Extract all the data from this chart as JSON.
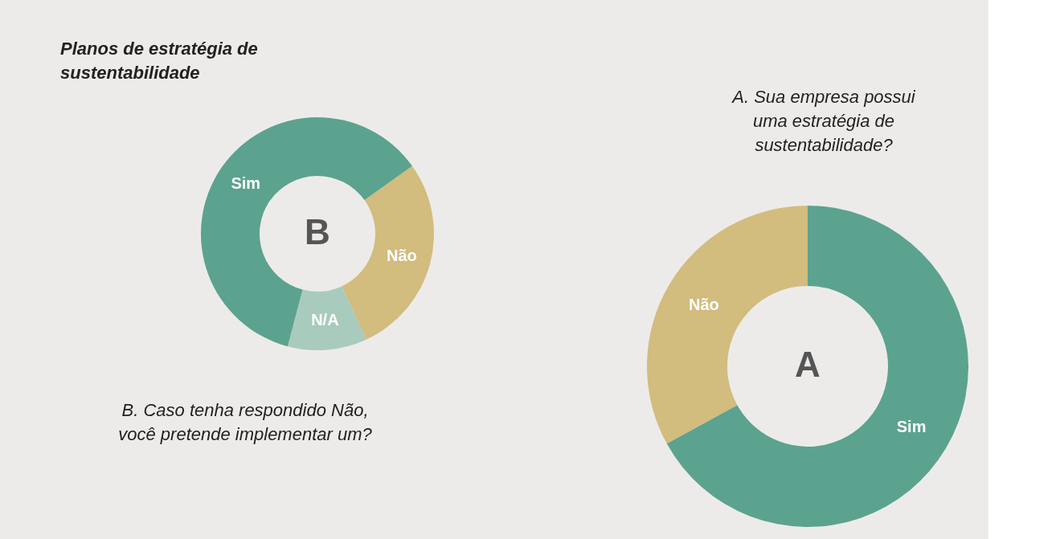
{
  "chart_data": [
    {
      "type": "donut",
      "title": "Planos de estratégia de sustentabilidade",
      "annotations": [
        "B",
        "B. Caso tenha respondido Não, você pretende implementar um?"
      ],
      "categories": [
        "Não",
        "N/A",
        "Sim"
      ],
      "values": [
        28,
        11,
        61
      ],
      "colors": [
        "#d2bc7e",
        "#a8cbbd",
        "#5ba38e"
      ]
    },
    {
      "type": "donut",
      "annotations": [
        "A",
        "A. Sua empresa possui uma estratégia de sustentabilidade?"
      ],
      "categories": [
        "Sim",
        "Não"
      ],
      "values": [
        67,
        33
      ],
      "colors": [
        "#5ba38e",
        "#d2bc7e"
      ]
    }
  ]
}
